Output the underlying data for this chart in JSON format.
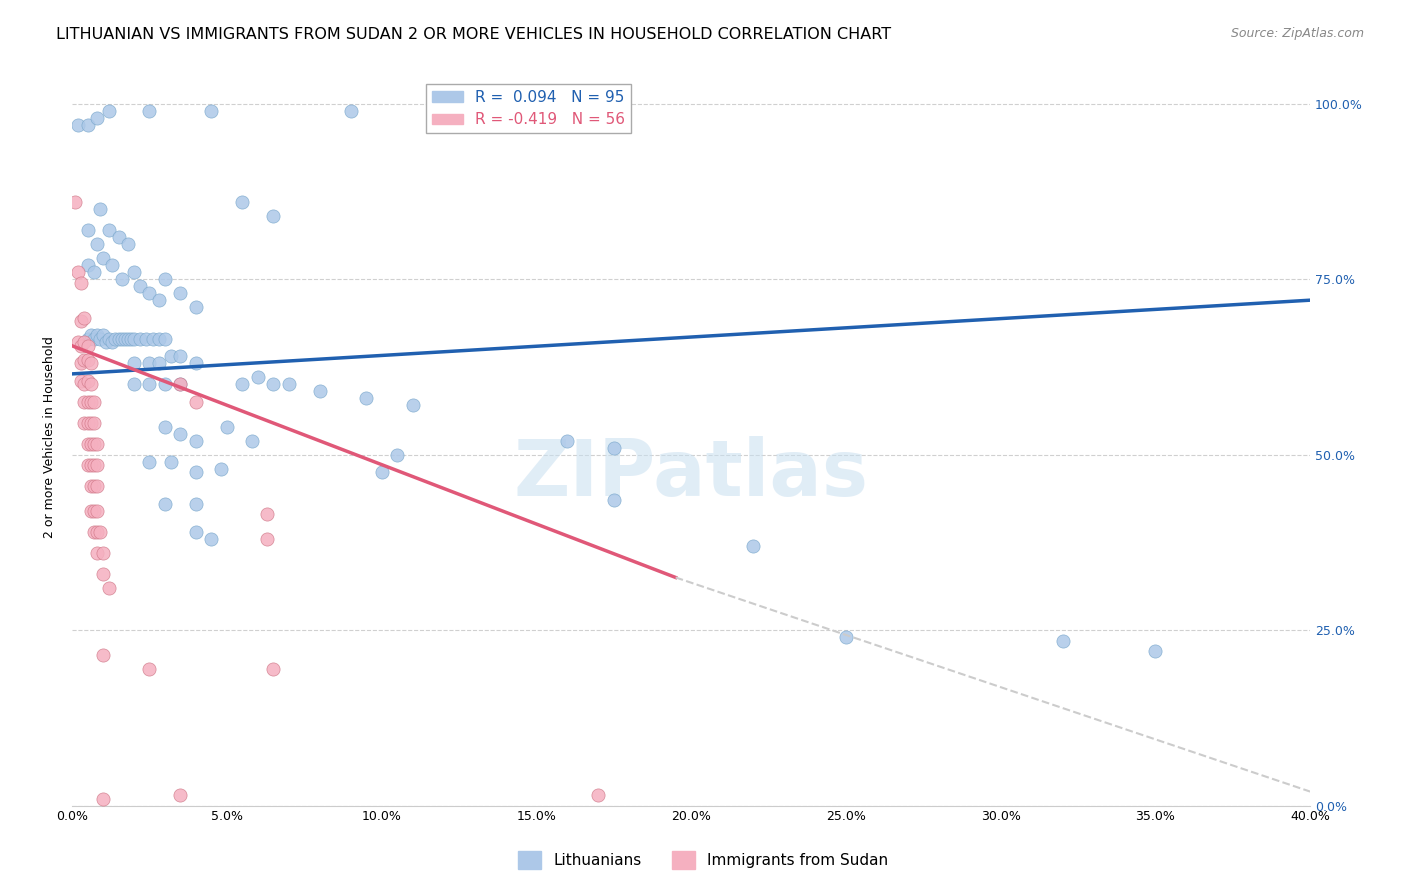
{
  "title": "LITHUANIAN VS IMMIGRANTS FROM SUDAN 2 OR MORE VEHICLES IN HOUSEHOLD CORRELATION CHART",
  "source": "Source: ZipAtlas.com",
  "ylabel": "2 or more Vehicles in Household",
  "yticks": [
    "0.0%",
    "25.0%",
    "50.0%",
    "75.0%",
    "100.0%"
  ],
  "ytick_vals": [
    0.0,
    0.25,
    0.5,
    0.75,
    1.0
  ],
  "xmin": 0.0,
  "xmax": 0.4,
  "ymin": 0.0,
  "ymax": 1.05,
  "r_blue": 0.094,
  "n_blue": 95,
  "r_pink": -0.419,
  "n_pink": 56,
  "legend_labels": [
    "Lithuanians",
    "Immigrants from Sudan"
  ],
  "blue_color": "#adc8e8",
  "pink_color": "#f5b0c0",
  "blue_line_color": "#2060b0",
  "pink_line_color": "#e05878",
  "blue_line": [
    [
      0.0,
      0.615
    ],
    [
      0.4,
      0.72
    ]
  ],
  "pink_line_solid": [
    [
      0.0,
      0.655
    ],
    [
      0.195,
      0.325
    ]
  ],
  "pink_line_dash": [
    [
      0.195,
      0.325
    ],
    [
      0.4,
      0.02
    ]
  ],
  "blue_scatter": [
    [
      0.002,
      0.97
    ],
    [
      0.005,
      0.97
    ],
    [
      0.008,
      0.98
    ],
    [
      0.012,
      0.99
    ],
    [
      0.025,
      0.99
    ],
    [
      0.045,
      0.99
    ],
    [
      0.09,
      0.99
    ],
    [
      0.135,
      0.99
    ],
    [
      0.055,
      0.86
    ],
    [
      0.065,
      0.84
    ],
    [
      0.005,
      0.82
    ],
    [
      0.008,
      0.8
    ],
    [
      0.009,
      0.85
    ],
    [
      0.012,
      0.82
    ],
    [
      0.015,
      0.81
    ],
    [
      0.018,
      0.8
    ],
    [
      0.005,
      0.77
    ],
    [
      0.007,
      0.76
    ],
    [
      0.01,
      0.78
    ],
    [
      0.013,
      0.77
    ],
    [
      0.016,
      0.75
    ],
    [
      0.02,
      0.76
    ],
    [
      0.022,
      0.74
    ],
    [
      0.025,
      0.73
    ],
    [
      0.028,
      0.72
    ],
    [
      0.03,
      0.75
    ],
    [
      0.035,
      0.73
    ],
    [
      0.04,
      0.71
    ],
    [
      0.005,
      0.665
    ],
    [
      0.006,
      0.67
    ],
    [
      0.007,
      0.665
    ],
    [
      0.008,
      0.67
    ],
    [
      0.009,
      0.665
    ],
    [
      0.01,
      0.67
    ],
    [
      0.011,
      0.66
    ],
    [
      0.012,
      0.665
    ],
    [
      0.013,
      0.66
    ],
    [
      0.014,
      0.665
    ],
    [
      0.015,
      0.665
    ],
    [
      0.016,
      0.665
    ],
    [
      0.017,
      0.665
    ],
    [
      0.018,
      0.665
    ],
    [
      0.019,
      0.665
    ],
    [
      0.02,
      0.665
    ],
    [
      0.022,
      0.665
    ],
    [
      0.024,
      0.665
    ],
    [
      0.026,
      0.665
    ],
    [
      0.028,
      0.665
    ],
    [
      0.03,
      0.665
    ],
    [
      0.02,
      0.63
    ],
    [
      0.025,
      0.63
    ],
    [
      0.028,
      0.63
    ],
    [
      0.032,
      0.64
    ],
    [
      0.035,
      0.64
    ],
    [
      0.04,
      0.63
    ],
    [
      0.02,
      0.6
    ],
    [
      0.025,
      0.6
    ],
    [
      0.03,
      0.6
    ],
    [
      0.035,
      0.6
    ],
    [
      0.055,
      0.6
    ],
    [
      0.06,
      0.61
    ],
    [
      0.065,
      0.6
    ],
    [
      0.07,
      0.6
    ],
    [
      0.08,
      0.59
    ],
    [
      0.095,
      0.58
    ],
    [
      0.11,
      0.57
    ],
    [
      0.03,
      0.54
    ],
    [
      0.035,
      0.53
    ],
    [
      0.04,
      0.52
    ],
    [
      0.05,
      0.54
    ],
    [
      0.058,
      0.52
    ],
    [
      0.16,
      0.52
    ],
    [
      0.175,
      0.51
    ],
    [
      0.025,
      0.49
    ],
    [
      0.032,
      0.49
    ],
    [
      0.04,
      0.475
    ],
    [
      0.048,
      0.48
    ],
    [
      0.1,
      0.475
    ],
    [
      0.105,
      0.5
    ],
    [
      0.03,
      0.43
    ],
    [
      0.04,
      0.43
    ],
    [
      0.175,
      0.435
    ],
    [
      0.04,
      0.39
    ],
    [
      0.045,
      0.38
    ],
    [
      0.22,
      0.37
    ],
    [
      0.25,
      0.24
    ],
    [
      0.32,
      0.235
    ],
    [
      0.35,
      0.22
    ]
  ],
  "pink_scatter": [
    [
      0.001,
      0.86
    ],
    [
      0.002,
      0.76
    ],
    [
      0.003,
      0.745
    ],
    [
      0.003,
      0.69
    ],
    [
      0.004,
      0.695
    ],
    [
      0.002,
      0.66
    ],
    [
      0.003,
      0.655
    ],
    [
      0.004,
      0.66
    ],
    [
      0.005,
      0.655
    ],
    [
      0.003,
      0.63
    ],
    [
      0.004,
      0.635
    ],
    [
      0.005,
      0.635
    ],
    [
      0.006,
      0.63
    ],
    [
      0.003,
      0.605
    ],
    [
      0.004,
      0.6
    ],
    [
      0.005,
      0.605
    ],
    [
      0.006,
      0.6
    ],
    [
      0.004,
      0.575
    ],
    [
      0.005,
      0.575
    ],
    [
      0.006,
      0.575
    ],
    [
      0.007,
      0.575
    ],
    [
      0.004,
      0.545
    ],
    [
      0.005,
      0.545
    ],
    [
      0.006,
      0.545
    ],
    [
      0.007,
      0.545
    ],
    [
      0.005,
      0.515
    ],
    [
      0.006,
      0.515
    ],
    [
      0.007,
      0.515
    ],
    [
      0.008,
      0.515
    ],
    [
      0.005,
      0.485
    ],
    [
      0.006,
      0.485
    ],
    [
      0.007,
      0.485
    ],
    [
      0.008,
      0.485
    ],
    [
      0.006,
      0.455
    ],
    [
      0.007,
      0.455
    ],
    [
      0.008,
      0.455
    ],
    [
      0.006,
      0.42
    ],
    [
      0.007,
      0.42
    ],
    [
      0.008,
      0.42
    ],
    [
      0.007,
      0.39
    ],
    [
      0.008,
      0.39
    ],
    [
      0.009,
      0.39
    ],
    [
      0.008,
      0.36
    ],
    [
      0.01,
      0.36
    ],
    [
      0.01,
      0.33
    ],
    [
      0.012,
      0.31
    ],
    [
      0.01,
      0.215
    ],
    [
      0.025,
      0.195
    ],
    [
      0.01,
      0.01
    ],
    [
      0.035,
      0.015
    ],
    [
      0.17,
      0.015
    ],
    [
      0.065,
      0.195
    ],
    [
      0.063,
      0.38
    ],
    [
      0.063,
      0.415
    ],
    [
      0.035,
      0.6
    ],
    [
      0.04,
      0.575
    ]
  ],
  "watermark": "ZIPatlas",
  "background_color": "#ffffff",
  "grid_color": "#d0d0d0",
  "title_fontsize": 11.5,
  "axis_label_fontsize": 9,
  "tick_fontsize": 9,
  "legend_fontsize": 11
}
